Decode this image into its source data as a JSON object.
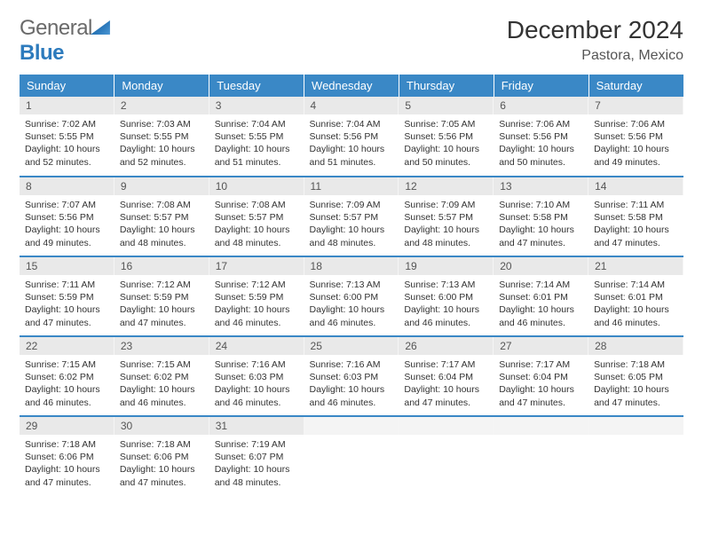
{
  "brand": {
    "general": "General",
    "blue": "Blue"
  },
  "title": "December 2024",
  "location": "Pastora, Mexico",
  "colors": {
    "header_bg": "#3a88c6",
    "header_text": "#ffffff",
    "daynum_bg": "#e9e9e9",
    "daynum_text": "#555555",
    "rule": "#3a88c6",
    "body_text": "#333333"
  },
  "weekdays": [
    "Sunday",
    "Monday",
    "Tuesday",
    "Wednesday",
    "Thursday",
    "Friday",
    "Saturday"
  ],
  "days": [
    {
      "n": "1",
      "sr": "7:02 AM",
      "ss": "5:55 PM",
      "dh": "10",
      "dm": "52"
    },
    {
      "n": "2",
      "sr": "7:03 AM",
      "ss": "5:55 PM",
      "dh": "10",
      "dm": "52"
    },
    {
      "n": "3",
      "sr": "7:04 AM",
      "ss": "5:55 PM",
      "dh": "10",
      "dm": "51"
    },
    {
      "n": "4",
      "sr": "7:04 AM",
      "ss": "5:56 PM",
      "dh": "10",
      "dm": "51"
    },
    {
      "n": "5",
      "sr": "7:05 AM",
      "ss": "5:56 PM",
      "dh": "10",
      "dm": "50"
    },
    {
      "n": "6",
      "sr": "7:06 AM",
      "ss": "5:56 PM",
      "dh": "10",
      "dm": "50"
    },
    {
      "n": "7",
      "sr": "7:06 AM",
      "ss": "5:56 PM",
      "dh": "10",
      "dm": "49"
    },
    {
      "n": "8",
      "sr": "7:07 AM",
      "ss": "5:56 PM",
      "dh": "10",
      "dm": "49"
    },
    {
      "n": "9",
      "sr": "7:08 AM",
      "ss": "5:57 PM",
      "dh": "10",
      "dm": "48"
    },
    {
      "n": "10",
      "sr": "7:08 AM",
      "ss": "5:57 PM",
      "dh": "10",
      "dm": "48"
    },
    {
      "n": "11",
      "sr": "7:09 AM",
      "ss": "5:57 PM",
      "dh": "10",
      "dm": "48"
    },
    {
      "n": "12",
      "sr": "7:09 AM",
      "ss": "5:57 PM",
      "dh": "10",
      "dm": "48"
    },
    {
      "n": "13",
      "sr": "7:10 AM",
      "ss": "5:58 PM",
      "dh": "10",
      "dm": "47"
    },
    {
      "n": "14",
      "sr": "7:11 AM",
      "ss": "5:58 PM",
      "dh": "10",
      "dm": "47"
    },
    {
      "n": "15",
      "sr": "7:11 AM",
      "ss": "5:59 PM",
      "dh": "10",
      "dm": "47"
    },
    {
      "n": "16",
      "sr": "7:12 AM",
      "ss": "5:59 PM",
      "dh": "10",
      "dm": "47"
    },
    {
      "n": "17",
      "sr": "7:12 AM",
      "ss": "5:59 PM",
      "dh": "10",
      "dm": "46"
    },
    {
      "n": "18",
      "sr": "7:13 AM",
      "ss": "6:00 PM",
      "dh": "10",
      "dm": "46"
    },
    {
      "n": "19",
      "sr": "7:13 AM",
      "ss": "6:00 PM",
      "dh": "10",
      "dm": "46"
    },
    {
      "n": "20",
      "sr": "7:14 AM",
      "ss": "6:01 PM",
      "dh": "10",
      "dm": "46"
    },
    {
      "n": "21",
      "sr": "7:14 AM",
      "ss": "6:01 PM",
      "dh": "10",
      "dm": "46"
    },
    {
      "n": "22",
      "sr": "7:15 AM",
      "ss": "6:02 PM",
      "dh": "10",
      "dm": "46"
    },
    {
      "n": "23",
      "sr": "7:15 AM",
      "ss": "6:02 PM",
      "dh": "10",
      "dm": "46"
    },
    {
      "n": "24",
      "sr": "7:16 AM",
      "ss": "6:03 PM",
      "dh": "10",
      "dm": "46"
    },
    {
      "n": "25",
      "sr": "7:16 AM",
      "ss": "6:03 PM",
      "dh": "10",
      "dm": "46"
    },
    {
      "n": "26",
      "sr": "7:17 AM",
      "ss": "6:04 PM",
      "dh": "10",
      "dm": "47"
    },
    {
      "n": "27",
      "sr": "7:17 AM",
      "ss": "6:04 PM",
      "dh": "10",
      "dm": "47"
    },
    {
      "n": "28",
      "sr": "7:18 AM",
      "ss": "6:05 PM",
      "dh": "10",
      "dm": "47"
    },
    {
      "n": "29",
      "sr": "7:18 AM",
      "ss": "6:06 PM",
      "dh": "10",
      "dm": "47"
    },
    {
      "n": "30",
      "sr": "7:18 AM",
      "ss": "6:06 PM",
      "dh": "10",
      "dm": "47"
    },
    {
      "n": "31",
      "sr": "7:19 AM",
      "ss": "6:07 PM",
      "dh": "10",
      "dm": "48"
    }
  ],
  "labels": {
    "sunrise_prefix": "Sunrise: ",
    "sunset_prefix": "Sunset: ",
    "daylight_prefix": "Daylight: ",
    "hours_word": " hours",
    "and_word": "and ",
    "minutes_word": " minutes."
  }
}
